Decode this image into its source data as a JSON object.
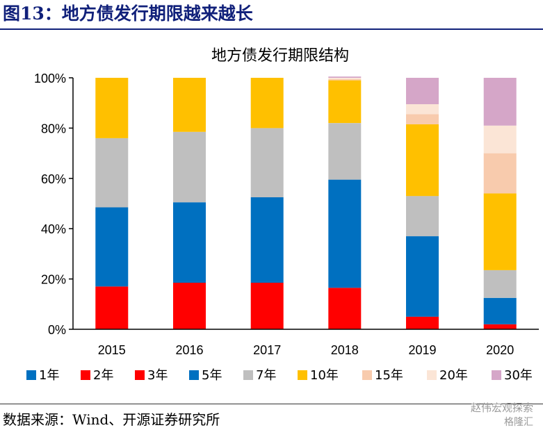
{
  "figure": {
    "title": "图13：地方债发行期限越来越长",
    "source": "数据来源：Wind、开源证券研究所",
    "watermark": "赵伟宏观探索",
    "watermark_logo": "格隆汇"
  },
  "chart_data": {
    "type": "bar",
    "stacked": true,
    "title": "地方债发行期限结构",
    "categories": [
      "2015",
      "2016",
      "2017",
      "2018",
      "2019",
      "2020"
    ],
    "y_ticks": [
      "0%",
      "20%",
      "40%",
      "60%",
      "80%",
      "100%"
    ],
    "ylim": [
      0,
      100
    ],
    "legend_position": "bottom",
    "series": [
      {
        "name": "1年",
        "color": "#0070c0",
        "values": [
          0,
          0,
          0,
          0,
          0,
          0
        ]
      },
      {
        "name": "2年",
        "color": "#ff0000",
        "values": [
          0,
          0,
          0,
          0,
          0,
          0
        ]
      },
      {
        "name": "3年",
        "color": "#ff0000",
        "values": [
          17,
          18.5,
          18.5,
          16.5,
          5,
          2
        ]
      },
      {
        "name": "5年",
        "color": "#0070c0",
        "values": [
          31.5,
          32,
          34,
          43,
          32,
          10.5
        ]
      },
      {
        "name": "7年",
        "color": "#bfbfbf",
        "values": [
          27.5,
          28,
          27.5,
          22.5,
          16,
          11
        ]
      },
      {
        "name": "10年",
        "color": "#ffc000",
        "values": [
          24,
          21.5,
          20,
          17,
          28.5,
          30.5
        ]
      },
      {
        "name": "15年",
        "color": "#f8cbad",
        "values": [
          0,
          0,
          0,
          0.5,
          4,
          16
        ]
      },
      {
        "name": "20年",
        "color": "#fbe5d6",
        "values": [
          0,
          0,
          0,
          0.5,
          4,
          11
        ]
      },
      {
        "name": "30年",
        "color": "#d5a6c8",
        "values": [
          0,
          0,
          0,
          0.5,
          10.5,
          19
        ]
      }
    ]
  }
}
